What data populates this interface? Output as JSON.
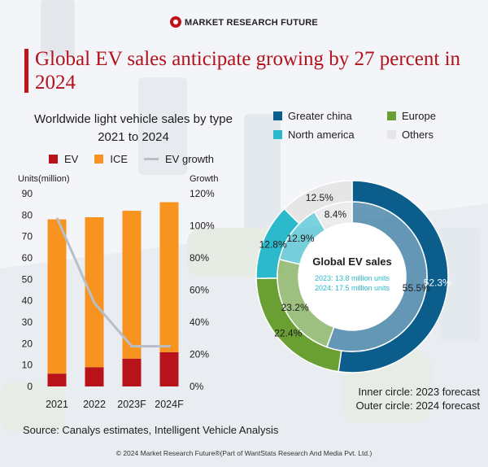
{
  "brand": "MARKET RESEARCH FUTURE",
  "title": "Global EV sales anticipate growing by 27 percent in 2024",
  "colors": {
    "ev": "#b8121b",
    "ice": "#f7931e",
    "growth": "#b8bfc8",
    "greater_china": "#0b5e8c",
    "europe": "#6aa033",
    "north_america": "#2bb9cb",
    "others": "#e6e6e6"
  },
  "chart_data": [
    {
      "type": "bar",
      "title": "Worldwide light vehicle sales by type",
      "subtitle": "2021 to 2024",
      "stacked": true,
      "categories": [
        "2021",
        "2022",
        "2023F",
        "2024F"
      ],
      "series": [
        {
          "name": "EV",
          "values": [
            6,
            9,
            13,
            16
          ]
        },
        {
          "name": "ICE",
          "values": [
            72,
            70,
            69,
            70
          ]
        }
      ],
      "line_series": {
        "name": "EV growth",
        "values": [
          105,
          52,
          25,
          25
        ],
        "axis": "right"
      },
      "ylabel": "Units(million)",
      "ylabel_right": "Growth",
      "ylim": [
        0,
        90
      ],
      "yticks": [
        0,
        10,
        20,
        30,
        40,
        50,
        60,
        70,
        80,
        90
      ],
      "ylim_right": [
        0,
        120
      ],
      "yticks_right": [
        "0%",
        "20%",
        "40%",
        "60%",
        "80%",
        "100%",
        "120%"
      ],
      "legend": [
        "EV",
        "ICE",
        "EV growth"
      ]
    },
    {
      "type": "pie",
      "title": "Global EV sales",
      "center_lines": [
        "2023: 13.8 million units",
        "2024: 17.5 million units"
      ],
      "legend": [
        "Greater china",
        "Europe",
        "North america",
        "Others"
      ],
      "inner": {
        "label": "2023 forecast",
        "values": [
          55.5,
          23.2,
          12.9,
          8.4
        ],
        "labels": [
          "55.5%",
          "23.2%",
          "12.9%",
          "8.4%"
        ]
      },
      "outer": {
        "label": "2024 forecast",
        "values": [
          52.3,
          22.4,
          12.8,
          12.5
        ],
        "labels": [
          "52.3%",
          "22.4%",
          "12.8%",
          "12.5%"
        ]
      }
    }
  ],
  "notes": {
    "inner": "Inner circle: 2023 forecast",
    "outer": "Outer circle: 2024 forecast"
  },
  "source": "Source: Canalys estimates, Intelligent Vehicle Analysis",
  "copyright": "© 2024 Market Research Future®(Part of WantStats Research And Media Pvt. Ltd.)"
}
